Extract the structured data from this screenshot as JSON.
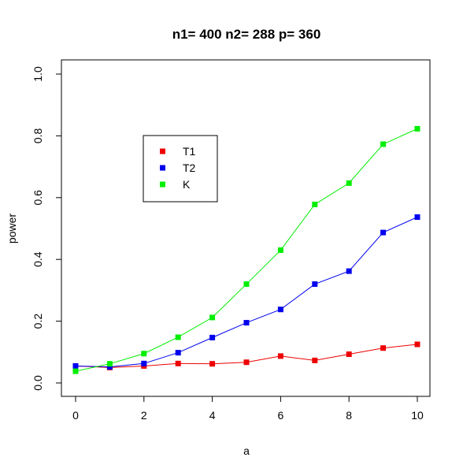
{
  "chart_data": {
    "type": "line",
    "title": "n1= 400 n2= 288 p= 360",
    "xlabel": "a",
    "ylabel": "power",
    "x": [
      0,
      1,
      2,
      3,
      4,
      5,
      6,
      7,
      8,
      9,
      10
    ],
    "xlim": [
      0,
      10
    ],
    "ylim": [
      0,
      1
    ],
    "xticks": [
      0,
      2,
      4,
      6,
      8,
      10
    ],
    "yticks": [
      0.0,
      0.2,
      0.4,
      0.6,
      0.8,
      1.0
    ],
    "xtick_labels": [
      "0",
      "2",
      "4",
      "6",
      "8",
      "10"
    ],
    "ytick_labels": [
      "0.0",
      "0.2",
      "0.4",
      "0.6",
      "0.8",
      "1.0"
    ],
    "grid": false,
    "legend_position": "upper-left",
    "series": [
      {
        "name": "T1",
        "color": "#ee0000",
        "values": [
          0.055,
          0.05,
          0.055,
          0.063,
          0.062,
          0.067,
          0.087,
          0.073,
          0.093,
          0.113,
          0.125
        ]
      },
      {
        "name": "T2",
        "color": "#0000ee",
        "values": [
          0.055,
          0.052,
          0.063,
          0.098,
          0.147,
          0.195,
          0.238,
          0.32,
          0.362,
          0.487,
          0.537
        ]
      },
      {
        "name": "K",
        "color": "#00ee00",
        "values": [
          0.038,
          0.062,
          0.095,
          0.148,
          0.212,
          0.32,
          0.43,
          0.578,
          0.647,
          0.773,
          0.823
        ]
      }
    ]
  }
}
